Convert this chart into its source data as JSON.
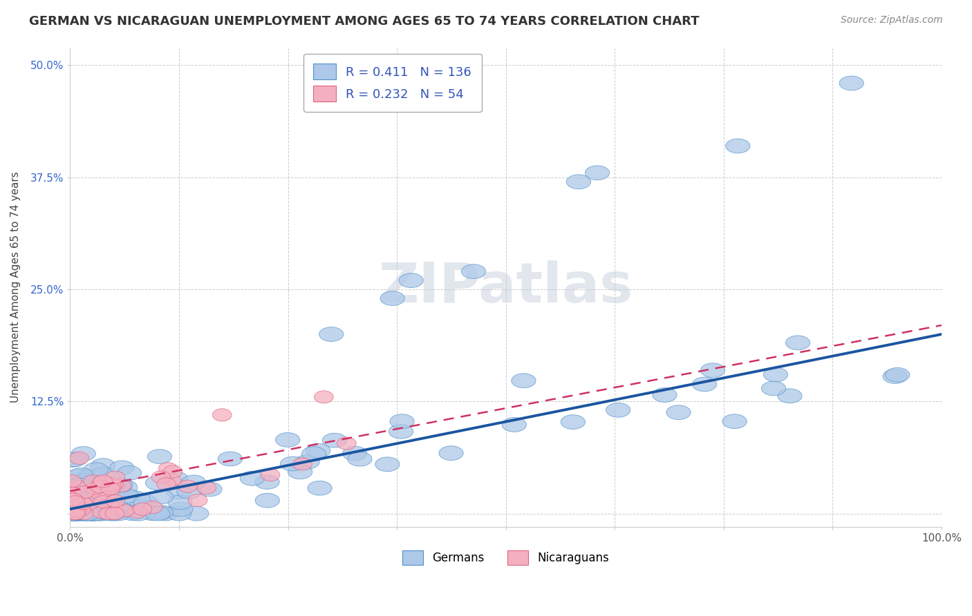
{
  "title": "GERMAN VS NICARAGUAN UNEMPLOYMENT AMONG AGES 65 TO 74 YEARS CORRELATION CHART",
  "source": "Source: ZipAtlas.com",
  "ylabel": "Unemployment Among Ages 65 to 74 years",
  "xlim": [
    0,
    100
  ],
  "ylim": [
    -1.5,
    52
  ],
  "xticks": [
    0,
    12.5,
    25.0,
    37.5,
    50.0,
    62.5,
    75.0,
    87.5,
    100.0
  ],
  "yticks": [
    0,
    12.5,
    25.0,
    37.5,
    50.0
  ],
  "german_R": 0.411,
  "german_N": 136,
  "nicaraguan_R": 0.232,
  "nicaraguan_N": 54,
  "german_color": "#adc8e8",
  "german_edge_color": "#5090c8",
  "german_line_color": "#1a55a0",
  "nicaraguan_color": "#f4b0c0",
  "nicaraguan_edge_color": "#e06080",
  "nicaraguan_line_color": "#d03060",
  "background_color": "#ffffff",
  "grid_color": "#cccccc",
  "title_fontsize": 13,
  "label_fontsize": 11,
  "tick_color_y": "#3366cc",
  "tick_color_x": "#555555",
  "german_trend_start_y": 0.5,
  "german_trend_end_y": 20.0,
  "nicaraguan_trend_start_y": 2.5,
  "nicaraguan_trend_end_y": 21.0
}
